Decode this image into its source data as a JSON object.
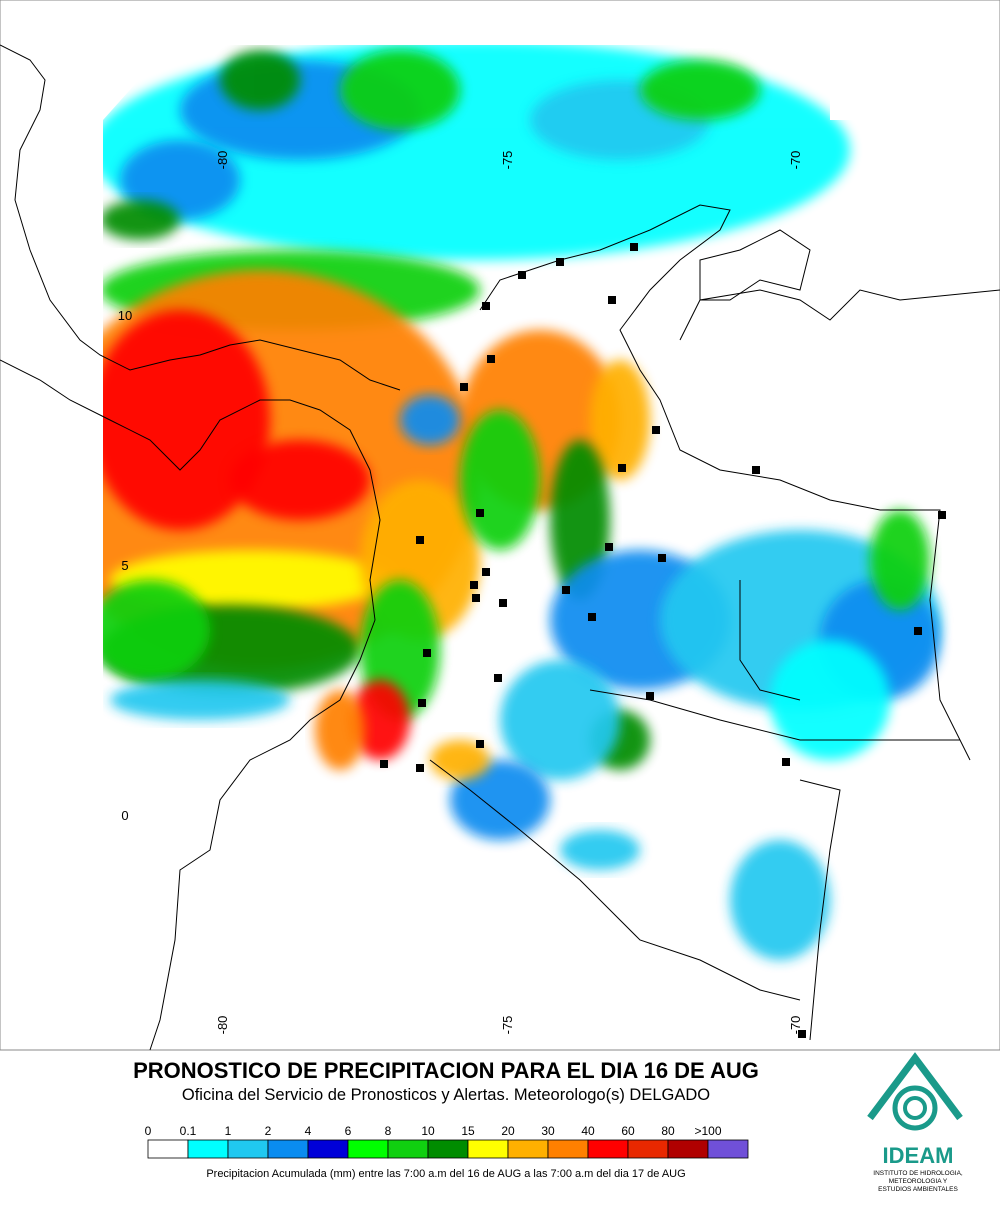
{
  "map": {
    "longitude_labels_top": [
      "-80",
      "-75",
      "-70"
    ],
    "longitude_labels_bottom": [
      "-80",
      "-75",
      "-70"
    ],
    "latitude_labels": [
      "10",
      "5",
      "0"
    ]
  },
  "title": "PRONOSTICO DE PRECIPITACION PARA EL DIA 16 DE AUG",
  "subtitle": "Oficina del Servicio de Pronosticos y Alertas. Meteorologo(s) DELGADO",
  "legend": {
    "items": [
      {
        "label": "0",
        "color": "#ffffff"
      },
      {
        "label": "0.1",
        "color": "#00ffff"
      },
      {
        "label": "1",
        "color": "#20c8f0"
      },
      {
        "label": "2",
        "color": "#0a8cf0"
      },
      {
        "label": "4",
        "color": "#0000d8"
      },
      {
        "label": "6",
        "color": "#00ff00"
      },
      {
        "label": "8",
        "color": "#10d010"
      },
      {
        "label": "10",
        "color": "#008c00"
      },
      {
        "label": "15",
        "color": "#ffff00"
      },
      {
        "label": "20",
        "color": "#ffb000"
      },
      {
        "label": "30",
        "color": "#ff8000"
      },
      {
        "label": "40",
        "color": "#ff0000"
      },
      {
        "label": "60",
        "color": "#e82800"
      },
      {
        "label": "80",
        "color": "#b00000"
      },
      {
        "label": ">100",
        "color": "#7050d8"
      }
    ],
    "caption": "Precipitacion Acumulada (mm) entre las 7:00 a.m del 16 de AUG a las 7:00 a.m del dia 17 de AUG"
  },
  "logo": {
    "name": "IDEAM",
    "lines": [
      "INSTITUTO DE HIDROLOGIA,",
      "METEOROLOGIA Y",
      "ESTUDIOS AMBIENTALES"
    ]
  }
}
